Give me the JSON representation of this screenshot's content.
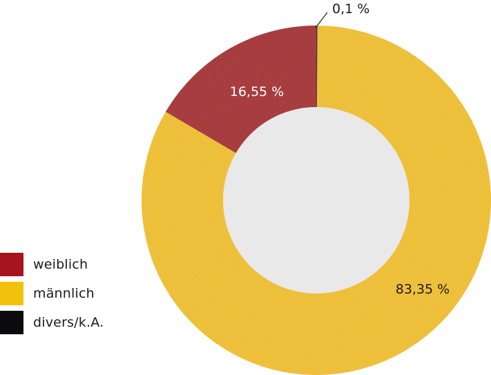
{
  "chart_data": {
    "type": "pie",
    "slices": [
      {
        "label": "weiblich",
        "value": 16.55,
        "value_label": "16,55 %",
        "color": "#a5151e",
        "label_color": "#ffffff"
      },
      {
        "label": "männlich",
        "value": 83.35,
        "value_label": "83,35 %",
        "color": "#f2c10c",
        "label_color": "#1a1a1a"
      },
      {
        "label": "divers/k.A.",
        "value": 0.1,
        "value_label": "0,1 %",
        "color": "#0b0b0d",
        "label_color": "#1a1a1a"
      }
    ],
    "donut_hole_color": "#e9e9e9",
    "legend_position": "bottom-left",
    "start_angle": "12 o'clock",
    "direction": "counterclockwise"
  }
}
